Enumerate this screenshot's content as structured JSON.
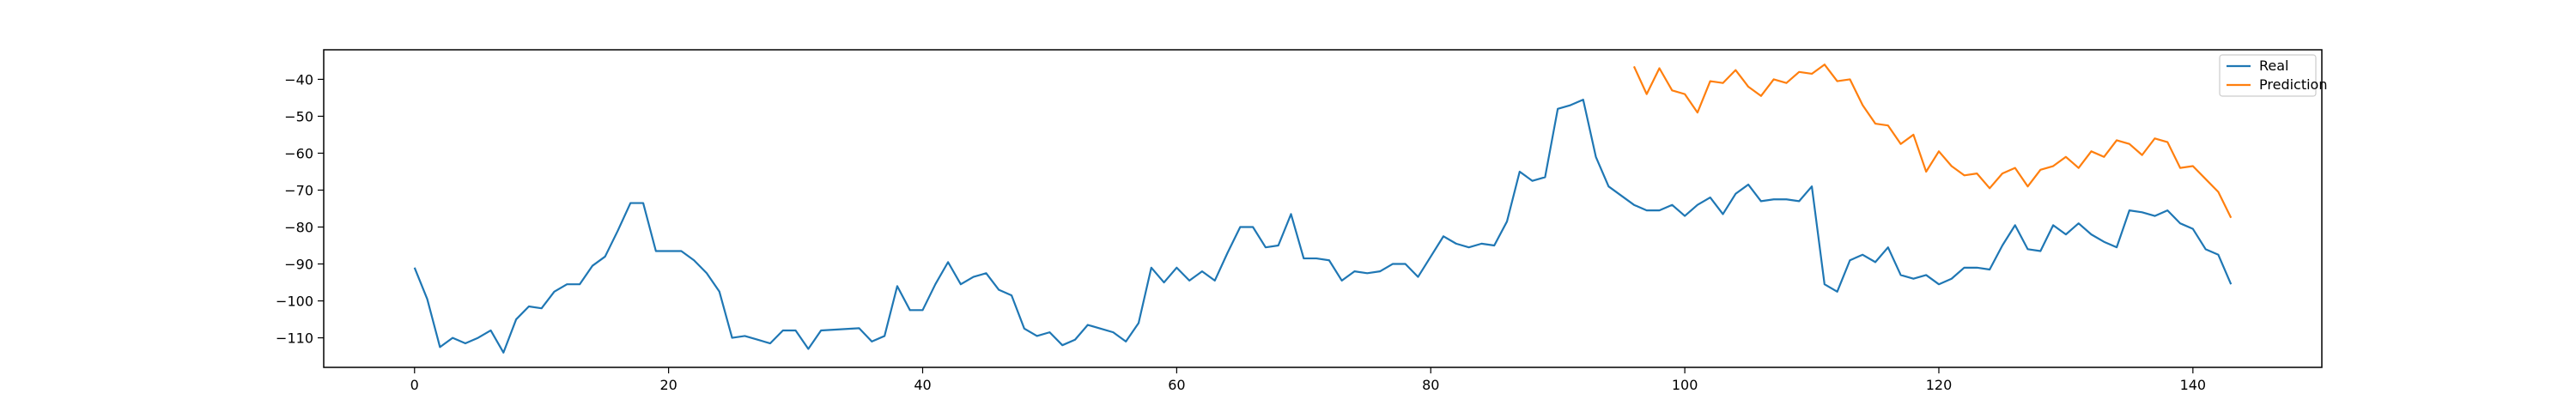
{
  "chart_data": {
    "type": "line",
    "title": "",
    "xlabel": "",
    "ylabel": "",
    "xlim": [
      -7.15,
      150.15
    ],
    "ylim": [
      -118,
      -32
    ],
    "grid": false,
    "legend_position": "top-right",
    "x_ticks": [
      0,
      20,
      40,
      60,
      80,
      100,
      120,
      140
    ],
    "y_ticks": [
      -110,
      -100,
      -90,
      -80,
      -70,
      -60,
      -50,
      -40
    ],
    "x_tick_labels": [
      "0",
      "20",
      "40",
      "60",
      "80",
      "100",
      "120",
      "140"
    ],
    "y_tick_labels": [
      "−110",
      "−100",
      "−90",
      "−80",
      "−70",
      "−60",
      "−50",
      "−40"
    ],
    "series": [
      {
        "name": "Real",
        "color": "#1f77b4",
        "x_start": 0,
        "values": [
          -91,
          -99.5,
          -112.5,
          -110,
          -111.5,
          -110,
          -108,
          -114,
          -105,
          -101.5,
          -102,
          -97.5,
          -95.5,
          -95.5,
          -90.5,
          -88,
          -81,
          -73.5,
          -73.5,
          -86.5,
          -86.5,
          -86.5,
          -89,
          -92.5,
          -97.5,
          -110,
          -109.5,
          -110.5,
          -111.5,
          -108,
          -108,
          -113,
          -108,
          -107.8,
          -107.6,
          -107.4,
          -111,
          -109.5,
          -96,
          -102.5,
          -102.5,
          -95.5,
          -89.5,
          -95.5,
          -93.5,
          -92.5,
          -97,
          -98.5,
          -107.5,
          -109.5,
          -108.5,
          -112,
          -110.5,
          -106.5,
          -107.5,
          -108.5,
          -111,
          -106,
          -91,
          -95,
          -91,
          -94.5,
          -92,
          -94.5,
          -87,
          -80,
          -80,
          -85.5,
          -85,
          -76.5,
          -88.5,
          -88.5,
          -89,
          -94.5,
          -92,
          -92.5,
          -92,
          -90,
          -90,
          -93.5,
          -88,
          -82.5,
          -84.5,
          -85.5,
          -84.5,
          -85,
          -78.5,
          -65,
          -67.5,
          -66.5,
          -48,
          -47,
          -45.5,
          -61,
          -69,
          -71.5,
          -74,
          -75.5,
          -75.5,
          -74,
          -77,
          -74,
          -72,
          -76.5,
          -71,
          -68.5,
          -73,
          -72.5,
          -72.5,
          -73,
          -69,
          -95.5,
          -97.5,
          -89,
          -87.5,
          -89.5,
          -85.5,
          -93,
          -94,
          -93,
          -95.5,
          -94,
          -91,
          -91,
          -91.5,
          -85,
          -79.5,
          -86,
          -86.5,
          -79.5,
          -82,
          -79,
          -82,
          -84,
          -85.5,
          -75.5,
          -76,
          -77,
          -75.5,
          -79,
          -80.5,
          -86,
          -87.5,
          -95.5
        ]
      },
      {
        "name": "Prediction",
        "color": "#ff7f0e",
        "x_start": 96,
        "values": [
          -36.5,
          -44,
          -37,
          -43,
          -44,
          -49,
          -40.5,
          -41,
          -37.5,
          -42,
          -44.5,
          -40,
          -41,
          -38,
          -38.5,
          -36,
          -40.5,
          -40,
          -47,
          -52,
          -52.5,
          -57.5,
          -55,
          -65,
          -59.5,
          -63.5,
          -66,
          -65.5,
          -69.5,
          -65.5,
          -64,
          -69,
          -64.5,
          -63.5,
          -61,
          -64,
          -59.5,
          -61,
          -56.5,
          -57.5,
          -60.5,
          -56,
          -57,
          -64,
          -63.5,
          -67,
          -70.5,
          -77.5
        ]
      }
    ]
  }
}
